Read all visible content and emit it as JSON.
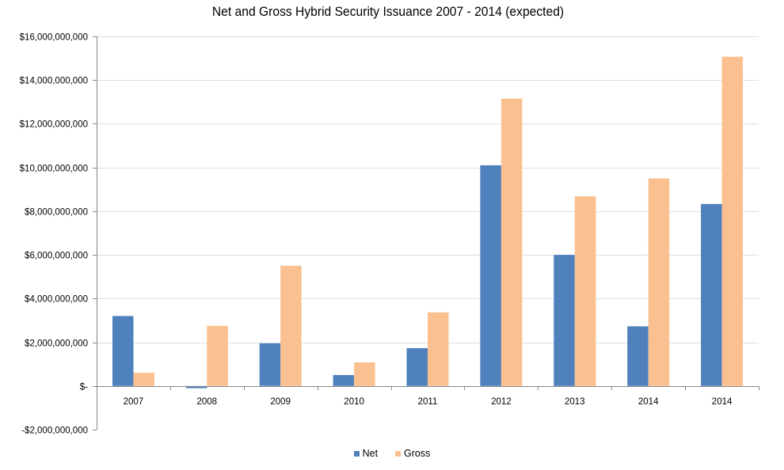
{
  "chart_data": {
    "type": "bar",
    "title": "Net and Gross Hybrid Security Issuance 2007 - 2014 (expected)",
    "xlabel": "",
    "ylabel": "",
    "categories": [
      "2007",
      "2008",
      "2009",
      "2010",
      "2011",
      "2012",
      "2013",
      "2014",
      "2014"
    ],
    "series": [
      {
        "name": "Net",
        "color": "#4F81BD",
        "values": [
          3200000000,
          -100000000,
          1950000000,
          500000000,
          1730000000,
          10100000000,
          6000000000,
          2730000000,
          8330000000
        ]
      },
      {
        "name": "Gross",
        "color": "#FAC090",
        "values": [
          600000000,
          2750000000,
          5500000000,
          1080000000,
          3370000000,
          13150000000,
          8680000000,
          9500000000,
          15070000000
        ]
      }
    ],
    "ylim": [
      -2000000000,
      16000000000
    ],
    "yticks": [
      {
        "value": 16000000000,
        "label": "$16,000,000,000"
      },
      {
        "value": 14000000000,
        "label": "$14,000,000,000"
      },
      {
        "value": 12000000000,
        "label": "$12,000,000,000"
      },
      {
        "value": 10000000000,
        "label": "$10,000,000,000"
      },
      {
        "value": 8000000000,
        "label": "$8,000,000,000"
      },
      {
        "value": 6000000000,
        "label": "$6,000,000,000"
      },
      {
        "value": 4000000000,
        "label": "$4,000,000,000"
      },
      {
        "value": 2000000000,
        "label": "$2,000,000,000"
      },
      {
        "value": 0,
        "label": "$-"
      },
      {
        "value": -2000000000,
        "label": "-$2,000,000,000"
      }
    ],
    "grid": true,
    "gridline_color": "#D9DFEC",
    "axis_color": "#868686",
    "legend_position": "bottom"
  }
}
